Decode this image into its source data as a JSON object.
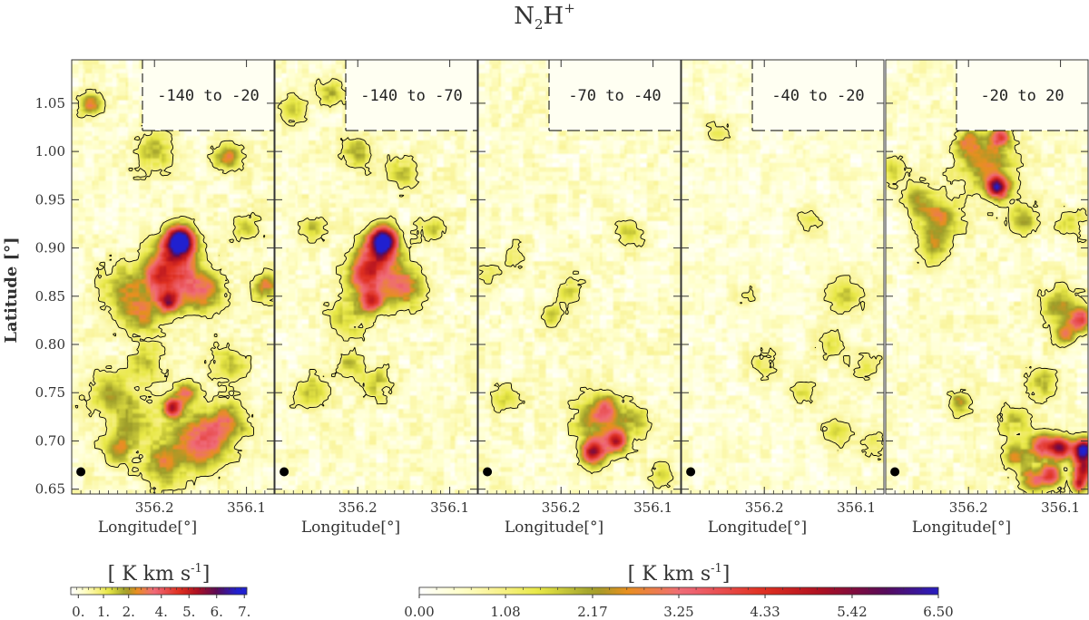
{
  "chart_data": {
    "type": "heatmap",
    "title": "N₂H⁺",
    "title_base": "N",
    "title_sub": "2",
    "title_mid": "H",
    "title_sup": "+",
    "ylabel": "Latitude [°]",
    "ylabel_text": "Latitude",
    "ylabel_unit": "[°]",
    "xlabel": "Longitude[°]",
    "xlabel_text": "Longitude",
    "xlabel_unit": "[°]",
    "xlim": [
      356.29,
      356.07
    ],
    "ylim": [
      0.645,
      1.095
    ],
    "x_ticks": [
      {
        "value": 356.2,
        "label": "356.2"
      },
      {
        "value": 356.1,
        "label": "356.1"
      }
    ],
    "y_ticks": [
      {
        "value": 0.65,
        "label": "0.65"
      },
      {
        "value": 0.7,
        "label": "0.70"
      },
      {
        "value": 0.75,
        "label": "0.75"
      },
      {
        "value": 0.8,
        "label": "0.80"
      },
      {
        "value": 0.85,
        "label": "0.85"
      },
      {
        "value": 0.9,
        "label": "0.90"
      },
      {
        "value": 0.95,
        "label": "0.95"
      },
      {
        "value": 1.0,
        "label": "1.00"
      },
      {
        "value": 1.05,
        "label": "1.05"
      }
    ],
    "panels": [
      {
        "label": "-140 to -20",
        "peaks": [
          [
            356.172,
            0.908,
            6.7,
            0.01
          ],
          [
            356.18,
            0.89,
            3.2,
            0.016
          ],
          [
            356.195,
            0.87,
            2.5,
            0.012
          ],
          [
            356.185,
            0.845,
            4.0,
            0.008
          ],
          [
            356.23,
            0.855,
            1.8,
            0.02
          ],
          [
            356.16,
            0.86,
            2.2,
            0.018
          ],
          [
            356.21,
            0.83,
            1.6,
            0.015
          ],
          [
            356.2,
            1.0,
            1.5,
            0.015
          ],
          [
            356.12,
            0.995,
            2.2,
            0.01
          ],
          [
            356.27,
            1.05,
            2.5,
            0.008
          ],
          [
            356.18,
            1.06,
            2.0,
            0.008
          ],
          [
            356.18,
            0.735,
            4.5,
            0.007
          ],
          [
            356.165,
            0.75,
            2.5,
            0.008
          ],
          [
            356.15,
            0.7,
            3.0,
            0.02
          ],
          [
            356.12,
            0.72,
            2.0,
            0.015
          ],
          [
            356.22,
            0.72,
            1.5,
            0.02
          ],
          [
            356.19,
            0.675,
            2.0,
            0.015
          ],
          [
            356.25,
            0.75,
            1.6,
            0.015
          ],
          [
            356.1,
            0.92,
            1.6,
            0.01
          ],
          [
            356.14,
            0.855,
            1.4,
            0.012
          ],
          [
            356.24,
            0.69,
            1.5,
            0.012
          ],
          [
            356.08,
            0.86,
            2.2,
            0.01
          ],
          [
            356.12,
            0.78,
            1.4,
            0.014
          ],
          [
            356.21,
            0.78,
            1.5,
            0.012
          ]
        ]
      },
      {
        "label": "-140 to -70",
        "peaks": [
          [
            356.172,
            0.908,
            6.0,
            0.01
          ],
          [
            356.18,
            0.89,
            3.0,
            0.016
          ],
          [
            356.195,
            0.87,
            2.4,
            0.012
          ],
          [
            356.185,
            0.845,
            3.5,
            0.008
          ],
          [
            356.16,
            0.86,
            2.0,
            0.018
          ],
          [
            356.21,
            0.83,
            1.4,
            0.015
          ],
          [
            356.2,
            1.0,
            1.5,
            0.012
          ],
          [
            356.15,
            0.98,
            1.3,
            0.012
          ],
          [
            356.23,
            1.06,
            1.5,
            0.01
          ],
          [
            356.27,
            1.045,
            1.3,
            0.01
          ],
          [
            356.25,
            0.75,
            1.5,
            0.012
          ],
          [
            356.18,
            0.76,
            1.3,
            0.012
          ],
          [
            356.12,
            0.92,
            1.3,
            0.01
          ],
          [
            356.25,
            0.92,
            1.2,
            0.01
          ],
          [
            356.14,
            0.86,
            1.1,
            0.012
          ],
          [
            356.21,
            0.78,
            1.2,
            0.01
          ]
        ]
      },
      {
        "label": "-70 to -40",
        "peaks": [
          [
            356.165,
            0.688,
            4.5,
            0.009
          ],
          [
            356.14,
            0.7,
            4.0,
            0.008
          ],
          [
            356.16,
            0.72,
            2.0,
            0.018
          ],
          [
            356.15,
            0.735,
            1.6,
            0.01
          ],
          [
            356.12,
            0.72,
            1.2,
            0.012
          ],
          [
            356.09,
            0.665,
            1.3,
            0.01
          ],
          [
            356.21,
            0.83,
            1.2,
            0.008
          ],
          [
            356.19,
            0.855,
            1.0,
            0.01
          ],
          [
            356.25,
            0.89,
            1.0,
            0.01
          ],
          [
            356.125,
            0.915,
            1.2,
            0.01
          ],
          [
            356.28,
            0.87,
            0.9,
            0.01
          ],
          [
            356.26,
            0.745,
            1.0,
            0.01
          ]
        ]
      },
      {
        "label": "-40 to -20",
        "peaks": [
          [
            356.11,
            0.85,
            1.2,
            0.015
          ],
          [
            356.13,
            0.8,
            1.0,
            0.012
          ],
          [
            356.09,
            0.78,
            1.0,
            0.012
          ],
          [
            356.16,
            0.75,
            1.0,
            0.01
          ],
          [
            356.12,
            0.71,
            1.1,
            0.012
          ],
          [
            356.08,
            0.7,
            1.0,
            0.012
          ],
          [
            356.22,
            0.85,
            0.9,
            0.008
          ],
          [
            356.25,
            1.02,
            0.9,
            0.01
          ],
          [
            356.2,
            0.78,
            0.9,
            0.012
          ],
          [
            356.15,
            0.93,
            0.9,
            0.01
          ]
        ]
      },
      {
        "label": "-20 to 20",
        "peaks": [
          [
            356.168,
            0.963,
            5.0,
            0.008
          ],
          [
            356.18,
            0.985,
            2.0,
            0.02
          ],
          [
            356.165,
            1.015,
            3.0,
            0.008
          ],
          [
            356.2,
            1.01,
            2.0,
            0.01
          ],
          [
            356.23,
            0.93,
            2.0,
            0.015
          ],
          [
            356.255,
            0.95,
            1.6,
            0.012
          ],
          [
            356.24,
            0.9,
            1.5,
            0.012
          ],
          [
            356.14,
            0.93,
            1.4,
            0.012
          ],
          [
            356.09,
            0.925,
            1.4,
            0.01
          ],
          [
            356.1,
            0.84,
            1.6,
            0.015
          ],
          [
            356.095,
            0.81,
            2.5,
            0.008
          ],
          [
            356.078,
            0.825,
            3.5,
            0.008
          ],
          [
            356.075,
            0.69,
            6.5,
            0.008
          ],
          [
            356.1,
            0.693,
            4.5,
            0.008
          ],
          [
            356.12,
            0.695,
            3.5,
            0.01
          ],
          [
            356.075,
            0.67,
            4.5,
            0.008
          ],
          [
            356.11,
            0.665,
            3.5,
            0.008
          ],
          [
            356.08,
            0.655,
            3.5,
            0.006
          ],
          [
            356.13,
            0.66,
            2.5,
            0.01
          ],
          [
            356.15,
            0.685,
            2.0,
            0.01
          ],
          [
            356.21,
            0.74,
            2.0,
            0.008
          ],
          [
            356.12,
            0.76,
            1.5,
            0.012
          ],
          [
            356.15,
            0.72,
            1.3,
            0.012
          ],
          [
            356.28,
            0.98,
            1.3,
            0.01
          ]
        ]
      }
    ],
    "beam_marker": {
      "x": 356.28,
      "y": 0.668
    },
    "colorbars": [
      {
        "title": "[ K km s⁻¹]",
        "title_main": "[ K km s",
        "title_sup": "-1",
        "title_close": "]",
        "range": [
          0,
          7.0
        ],
        "tick_labels": [
          "0.",
          "1.",
          "2.",
          "4.",
          "5.",
          "6.",
          "7."
        ],
        "tick_values": [
          0.3,
          1.3,
          2.3,
          3.6,
          4.7,
          5.8,
          6.9
        ]
      },
      {
        "title": "[ K km s⁻¹]",
        "title_main": "[ K km s",
        "title_sup": "-1",
        "title_close": "]",
        "range": [
          0,
          6.5
        ],
        "tick_labels": [
          "0.00",
          "1.08",
          "2.17",
          "3.25",
          "4.33",
          "5.42",
          "6.50"
        ],
        "tick_values": [
          0,
          1.08,
          2.17,
          3.25,
          4.33,
          5.42,
          6.5
        ]
      }
    ],
    "colormap": [
      "#ffffff",
      "#ffffcc",
      "#f8f18c",
      "#e8e845",
      "#9c9c2a",
      "#e8901f",
      "#f06a7a",
      "#e03020",
      "#b01020",
      "#5a0a55",
      "#2020d0"
    ],
    "colormap_stops": [
      0,
      0.5,
      1.0,
      1.5,
      2.2,
      2.6,
      3.3,
      4.3,
      5.0,
      5.8,
      6.6
    ],
    "contour_level": 1.0,
    "contour_color": "#000000",
    "beam_color": "#000000"
  }
}
